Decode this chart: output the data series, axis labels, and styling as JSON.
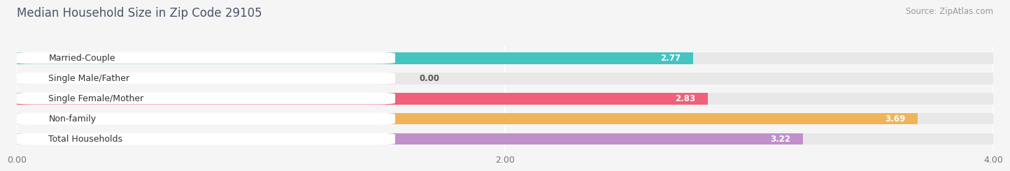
{
  "title": "Median Household Size in Zip Code 29105",
  "source": "Source: ZipAtlas.com",
  "categories": [
    "Married-Couple",
    "Single Male/Father",
    "Single Female/Mother",
    "Non-family",
    "Total Households"
  ],
  "values": [
    2.77,
    0.0,
    2.83,
    3.69,
    3.22
  ],
  "bar_colors": [
    "#45c4c0",
    "#a8c0e8",
    "#f0607a",
    "#f0b458",
    "#c090cc"
  ],
  "bar_bg_color": "#e8e8e8",
  "xlim": [
    0,
    4.0
  ],
  "xticks": [
    0.0,
    2.0,
    4.0
  ],
  "xtick_labels": [
    "0.00",
    "2.00",
    "4.00"
  ],
  "title_fontsize": 12,
  "source_fontsize": 8.5,
  "label_fontsize": 9,
  "value_fontsize": 8.5,
  "background_color": "#f5f5f5",
  "bar_height": 0.58,
  "title_color": "#4a5568",
  "label_color": "#333333",
  "value_color": "#ffffff",
  "axis_color": "#bbbbbb"
}
